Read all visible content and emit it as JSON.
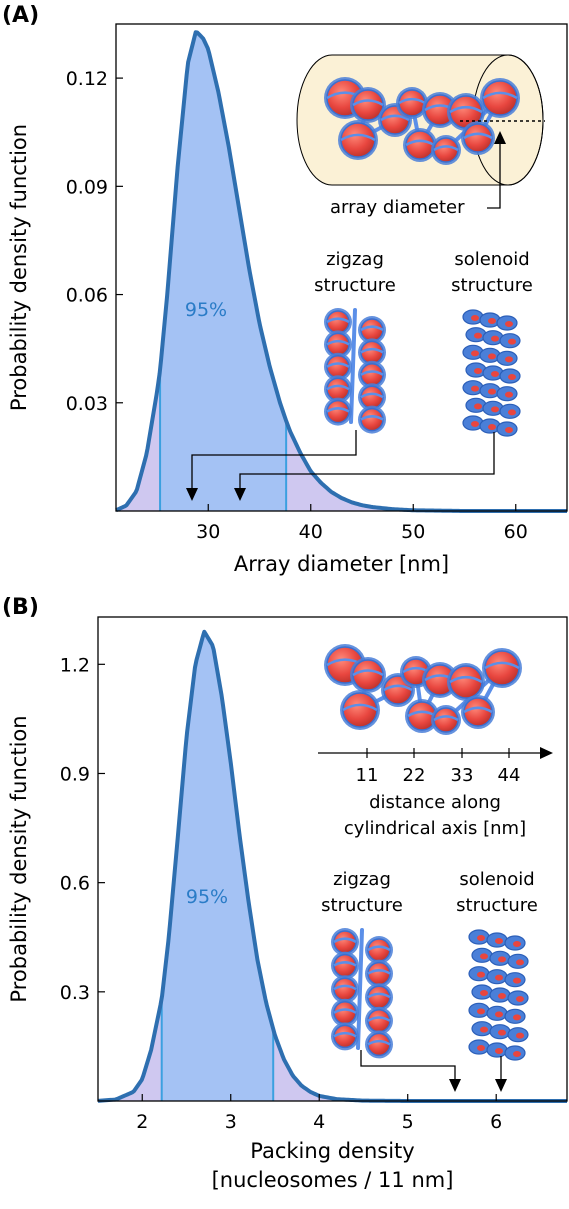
{
  "chart_data": [
    {
      "type": "area",
      "panel_label": "(A)",
      "xlabel": "Array diameter [nm]",
      "ylabel": "Probability density function",
      "xlim": [
        21,
        65
      ],
      "ylim": [
        0,
        0.135
      ],
      "xticks": [
        30,
        40,
        50,
        60
      ],
      "xtick_labels": [
        "30",
        "40",
        "50",
        "60"
      ],
      "yticks": [
        0.03,
        0.06,
        0.09,
        0.12
      ],
      "ytick_labels": [
        "0.03",
        "0.06",
        "0.09",
        "0.12"
      ],
      "grid": false,
      "series": [
        {
          "x": [
            21,
            22,
            23,
            24,
            25,
            25.3,
            26,
            27,
            28,
            28.8,
            29.5,
            30,
            31,
            32,
            33,
            34,
            35,
            36,
            37,
            37.6,
            38,
            39,
            40,
            41,
            42,
            43,
            44,
            45,
            46,
            48,
            50,
            55,
            60,
            65
          ],
          "y": [
            0.0002,
            0.0015,
            0.0055,
            0.016,
            0.033,
            0.039,
            0.06,
            0.095,
            0.124,
            0.133,
            0.131,
            0.128,
            0.116,
            0.101,
            0.084,
            0.067,
            0.052,
            0.04,
            0.03,
            0.025,
            0.022,
            0.016,
            0.011,
            0.0078,
            0.0053,
            0.0036,
            0.0024,
            0.0016,
            0.0011,
            0.0005,
            0.0002,
            0.0,
            0.0,
            0.0
          ]
        }
      ],
      "interval_95": [
        25.3,
        37.6
      ],
      "interval_label": "95%",
      "annotations": {
        "zigzag_label": [
          "zigzag",
          "structure"
        ],
        "solenoid_label": [
          "solenoid",
          "structure"
        ],
        "inset_label": "array diameter"
      },
      "arrow_targets_x": [
        28.5,
        33.2
      ]
    },
    {
      "type": "area",
      "panel_label": "(B)",
      "xlabel": [
        "Packing density",
        "[nucleosomes / 11 nm]"
      ],
      "ylabel": "Probability density function",
      "xlim": [
        1.5,
        6.8
      ],
      "ylim": [
        0,
        1.33
      ],
      "xticks": [
        2,
        3,
        4,
        5,
        6
      ],
      "xtick_labels": [
        "2",
        "3",
        "4",
        "5",
        "6"
      ],
      "yticks": [
        0.3,
        0.6,
        0.9,
        1.2
      ],
      "ytick_labels": [
        "0.3",
        "0.6",
        "0.9",
        "1.2"
      ],
      "grid": false,
      "series": [
        {
          "x": [
            1.5,
            1.7,
            1.9,
            2.0,
            2.1,
            2.22,
            2.3,
            2.4,
            2.5,
            2.6,
            2.7,
            2.8,
            2.9,
            3.0,
            3.1,
            3.2,
            3.3,
            3.4,
            3.5,
            3.6,
            3.7,
            3.8,
            3.9,
            4.0,
            4.2,
            4.5,
            5.0,
            6.0,
            6.8
          ],
          "y": [
            0.0005,
            0.004,
            0.025,
            0.06,
            0.14,
            0.28,
            0.45,
            0.72,
            1.0,
            1.2,
            1.29,
            1.25,
            1.11,
            0.93,
            0.73,
            0.55,
            0.39,
            0.27,
            0.18,
            0.115,
            0.07,
            0.042,
            0.025,
            0.014,
            0.005,
            0.001,
            0.0,
            0.0,
            0.0
          ]
        }
      ],
      "interval_95": [
        2.22,
        3.48
      ],
      "interval_label": "95%",
      "annotations": {
        "zigzag_label": [
          "zigzag",
          "structure"
        ],
        "solenoid_label": [
          "solenoid",
          "structure"
        ],
        "inset_axis_ticks": [
          "11",
          "22",
          "33",
          "44"
        ],
        "inset_axis_label": [
          "distance along",
          "cylindrical axis [nm]"
        ]
      },
      "arrow_targets_x": [
        5.5,
        6.0
      ]
    }
  ],
  "colors": {
    "curve": "#2e6fb0",
    "fill": "#a4c2f4",
    "tail_fill": "#cfc8f0",
    "interval_line": "#3ba0e0",
    "pct_text": "#2a7cc7",
    "nucleosome_body": "#e8463f",
    "nucleosome_outline": "#4a7fd8",
    "inset_cylinder": "#fbf1d6"
  }
}
